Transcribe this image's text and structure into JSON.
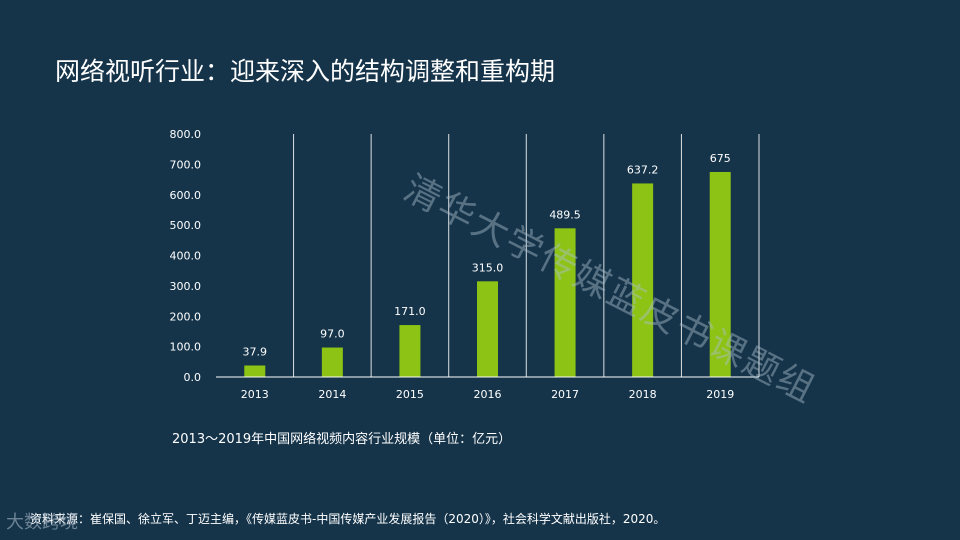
{
  "slide": {
    "title": "网络视听行业：迎来深入的结构调整和重构期",
    "caption": "2013～2019年中国网络视频内容行业规模（单位：亿元）",
    "source": "资料来源：崔保国、徐立军、丁迈主编，《传媒蓝皮书-中国传媒产业发展报告（2020）》，社会科学文献出版社，2020。",
    "watermark": "清华大学传媒蓝皮书课题组",
    "logo_text": "大数跨境"
  },
  "colors": {
    "background": "#15344a",
    "bar": "#8cc314",
    "text": "#ffffff"
  },
  "chart_data": {
    "type": "bar",
    "categories": [
      "2013",
      "2014",
      "2015",
      "2016",
      "2017",
      "2018",
      "2019"
    ],
    "values": [
      37.9,
      97.0,
      171.0,
      315.0,
      489.5,
      637.2,
      675
    ],
    "labels": [
      "37.9",
      "97.0",
      "171.0",
      "315.0",
      "489.5",
      "637.2",
      "675"
    ],
    "ylim": [
      0,
      800
    ],
    "yticks": [
      "0.0",
      "100.0",
      "200.0",
      "300.0",
      "400.0",
      "500.0",
      "600.0",
      "700.0",
      "800.0"
    ],
    "title": "",
    "xlabel": "",
    "ylabel": ""
  }
}
